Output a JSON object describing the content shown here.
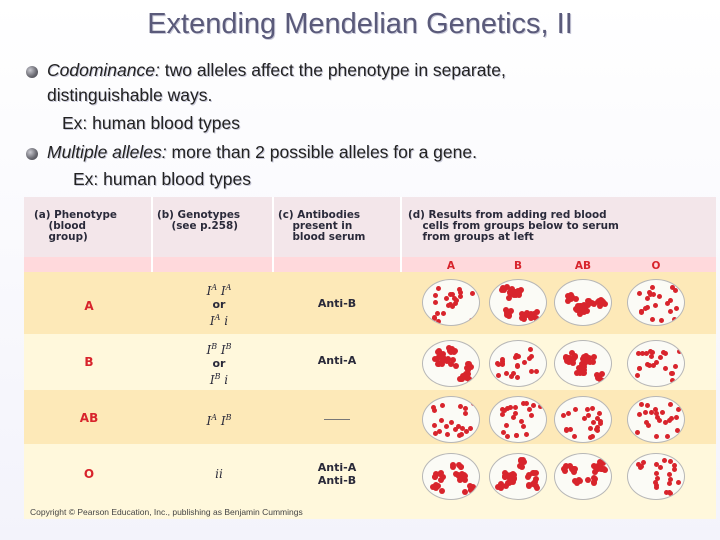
{
  "slide": {
    "title": "Extending Mendelian Genetics, II",
    "bullets": [
      {
        "term": "Codominance:",
        "text_line1": " two alleles affect the phenotype in separate,",
        "text_line2": "distinguishable ways.",
        "example": "Ex: human blood types"
      },
      {
        "term": "Multiple alleles:",
        "text_line1": " more than 2 possible alleles for a gene.",
        "example": "Ex: human blood types"
      }
    ]
  },
  "figure": {
    "headers": {
      "a": "(a) Phenotype\n    (blood\n    group)",
      "b": "(b) Genotypes\n    (see p.258)",
      "c": "(c) Antibodies\n    present in\n    blood serum",
      "d": "(d) Results from adding red blood\n    cells from groups below to serum\n    from groups at left"
    },
    "test_columns": [
      "A",
      "B",
      "AB",
      "O"
    ],
    "rows": [
      {
        "phenotype": "A",
        "genotype_line1": "IAIA",
        "genotype_or": "or",
        "genotype_line2": "IAi",
        "antibodies": "Anti-B",
        "clumped": [
          false,
          true,
          true,
          false
        ]
      },
      {
        "phenotype": "B",
        "genotype_line1": "IBIB",
        "genotype_or": "or",
        "genotype_line2": "IBi",
        "antibodies": "Anti-A",
        "clumped": [
          true,
          false,
          true,
          false
        ]
      },
      {
        "phenotype": "AB",
        "genotype_line1": "IAIB",
        "antibodies": "",
        "clumped": [
          false,
          false,
          false,
          false
        ]
      },
      {
        "phenotype": "O",
        "genotype_line1": "ii",
        "antibodies": "Anti-A\nAnti-B",
        "clumped": [
          true,
          true,
          true,
          false
        ]
      }
    ],
    "copyright": "Copyright © Pearson Education, Inc., publishing as Benjamin Cummings",
    "colors": {
      "red": "#d8242c",
      "header_bg": "#f3e6ea",
      "row_bg": "#fff8dc",
      "alt_row_bg": "#fde9b8"
    }
  }
}
